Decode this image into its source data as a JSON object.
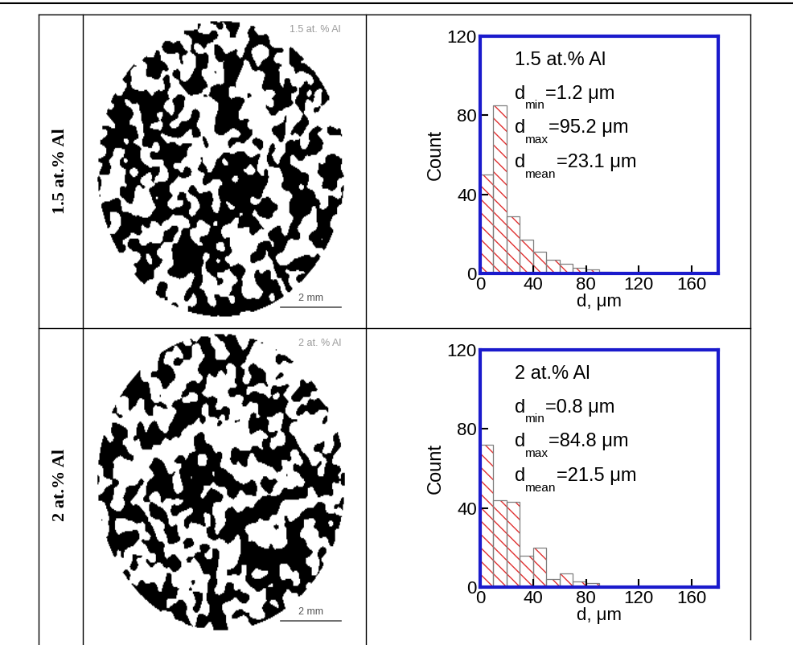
{
  "figure_table": {
    "rows": [
      {
        "label": "1.5 at.% Al",
        "micrograph": {
          "label": "1.5 at. % Al",
          "scale_bar": "2 mm"
        }
      },
      {
        "label": "2 at.% Al",
        "micrograph": {
          "label": "2 at. % Al",
          "scale_bar": "2 mm"
        }
      }
    ]
  },
  "chart_data": [
    {
      "type": "histogram",
      "xlabel": "d, μm",
      "ylabel": "Count",
      "color": "#e03030",
      "bins": [
        0,
        10,
        20,
        30,
        40,
        50,
        60,
        70,
        80,
        90,
        100
      ],
      "values": [
        50,
        85,
        29,
        17,
        11,
        7,
        5,
        3,
        2,
        1
      ],
      "xlim": [
        0,
        180
      ],
      "xticks": [
        0,
        40,
        80,
        120,
        160
      ],
      "ylim": [
        0,
        120
      ],
      "yticks": [
        0,
        40,
        80,
        120
      ],
      "annotations": [
        {
          "text": "1.5 at.% Al"
        },
        {
          "symbol": "d",
          "subscript": "min",
          "text": "=1.2 μm"
        },
        {
          "symbol": "d",
          "subscript": "max",
          "text": "=95.2 μm"
        },
        {
          "symbol": "d",
          "subscript": "mean",
          "text": "=23.1 μm"
        }
      ]
    },
    {
      "type": "histogram",
      "xlabel": "d, μm",
      "ylabel": "Count",
      "color": "#e03030",
      "bins": [
        0,
        10,
        20,
        30,
        40,
        50,
        60,
        70,
        80,
        90
      ],
      "values": [
        72,
        44,
        43,
        16,
        20,
        4,
        7,
        3,
        2
      ],
      "xlim": [
        0,
        180
      ],
      "xticks": [
        0,
        40,
        80,
        120,
        160
      ],
      "ylim": [
        0,
        120
      ],
      "yticks": [
        0,
        40,
        80,
        120
      ],
      "annotations": [
        {
          "text": "2 at.% Al"
        },
        {
          "symbol": "d",
          "subscript": "min",
          "text": "=0.8 μm"
        },
        {
          "symbol": "d",
          "subscript": "max",
          "text": "=84.8 μm"
        },
        {
          "symbol": "d",
          "subscript": "mean",
          "text": "=21.5 μm"
        }
      ]
    }
  ]
}
